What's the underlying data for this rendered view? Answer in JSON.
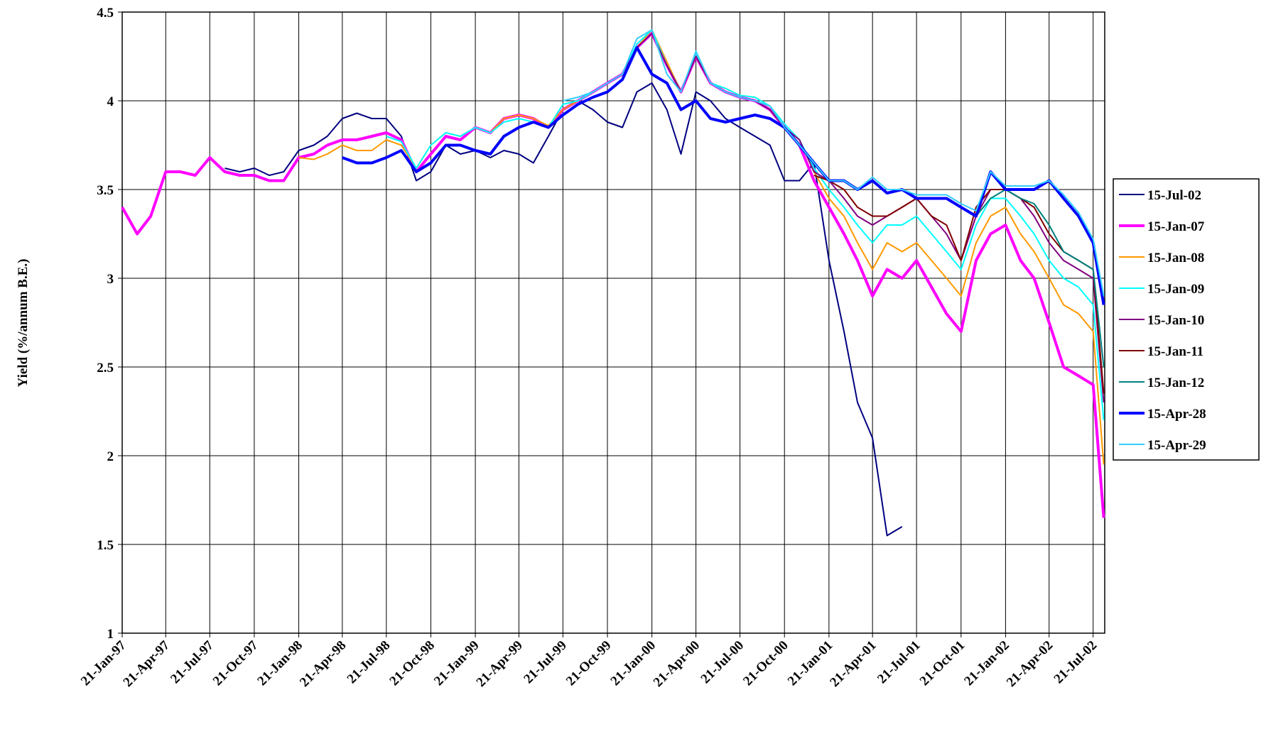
{
  "chart_data": {
    "type": "line",
    "y_label": "Yield (%/annum B.E.)",
    "x": [
      "1997-01-21",
      "1997-02-21",
      "1997-03-21",
      "1997-04-21",
      "1997-05-21",
      "1997-06-21",
      "1997-07-21",
      "1997-08-21",
      "1997-09-21",
      "1997-10-21",
      "1997-11-21",
      "1997-12-21",
      "1998-01-21",
      "1998-02-21",
      "1998-03-21",
      "1998-04-21",
      "1998-05-21",
      "1998-06-21",
      "1998-07-21",
      "1998-08-21",
      "1998-09-21",
      "1998-10-21",
      "1998-11-21",
      "1998-12-21",
      "1999-01-21",
      "1999-02-21",
      "1999-03-21",
      "1999-04-21",
      "1999-05-21",
      "1999-06-21",
      "1999-07-21",
      "1999-08-21",
      "1999-09-21",
      "1999-10-21",
      "1999-11-21",
      "1999-12-21",
      "2000-01-21",
      "2000-02-21",
      "2000-03-21",
      "2000-04-21",
      "2000-05-21",
      "2000-06-21",
      "2000-07-21",
      "2000-08-21",
      "2000-09-21",
      "2000-10-21",
      "2000-11-21",
      "2000-12-21",
      "2001-01-21",
      "2001-02-21",
      "2001-03-21",
      "2001-04-21",
      "2001-05-21",
      "2001-06-21",
      "2001-07-21",
      "2001-08-21",
      "2001-09-21",
      "2001-10-21",
      "2001-11-21",
      "2001-12-21",
      "2002-01-21",
      "2002-02-21",
      "2002-03-21",
      "2002-04-21",
      "2002-05-21",
      "2002-06-21",
      "2002-07-21",
      "2002-08-12"
    ],
    "series": [
      {
        "name": "15-Jul-02",
        "color": "#000080",
        "width": 2,
        "values": [
          null,
          null,
          null,
          null,
          null,
          null,
          null,
          3.62,
          3.6,
          3.62,
          3.58,
          3.6,
          3.72,
          3.75,
          3.8,
          3.9,
          3.93,
          3.9,
          3.9,
          3.8,
          3.55,
          3.6,
          3.75,
          3.7,
          3.72,
          3.68,
          3.72,
          3.7,
          3.65,
          3.8,
          3.95,
          4.0,
          3.95,
          3.88,
          3.85,
          4.05,
          4.1,
          3.95,
          3.7,
          4.05,
          4.0,
          3.9,
          3.85,
          3.8,
          3.75,
          3.55,
          3.55,
          3.65,
          3.1,
          2.7,
          2.3,
          2.1,
          1.55,
          1.6,
          null,
          null,
          null,
          null,
          null,
          null,
          null,
          null,
          null,
          null,
          null,
          null,
          null,
          null
        ]
      },
      {
        "name": "15-Jan-07",
        "color": "#ff00ff",
        "width": 4,
        "values": [
          3.4,
          3.25,
          3.35,
          3.6,
          3.6,
          3.58,
          3.68,
          3.6,
          3.58,
          3.58,
          3.55,
          3.55,
          3.68,
          3.7,
          3.75,
          3.78,
          3.78,
          3.8,
          3.82,
          3.78,
          3.6,
          3.7,
          3.8,
          3.78,
          3.85,
          3.82,
          3.9,
          3.92,
          3.9,
          3.85,
          3.95,
          4.0,
          4.05,
          4.1,
          4.15,
          4.3,
          4.38,
          4.2,
          4.05,
          4.25,
          4.1,
          4.05,
          4.02,
          4.0,
          3.95,
          3.85,
          3.75,
          3.55,
          3.4,
          3.25,
          3.1,
          2.9,
          3.05,
          3.0,
          3.1,
          2.95,
          2.8,
          2.7,
          3.1,
          3.25,
          3.3,
          3.1,
          3.0,
          2.75,
          2.5,
          2.45,
          2.4,
          1.65
        ]
      },
      {
        "name": "15-Jan-08",
        "color": "#ff9900",
        "width": 2,
        "values": [
          null,
          null,
          null,
          null,
          null,
          null,
          null,
          null,
          null,
          null,
          null,
          null,
          3.68,
          3.67,
          3.7,
          3.75,
          3.72,
          3.72,
          3.78,
          3.75,
          3.62,
          3.75,
          3.82,
          3.8,
          3.85,
          3.82,
          3.9,
          3.92,
          3.9,
          3.86,
          3.95,
          4.0,
          4.05,
          4.1,
          4.15,
          4.3,
          4.4,
          4.22,
          4.05,
          4.27,
          4.1,
          4.07,
          4.03,
          4.02,
          3.97,
          3.87,
          3.78,
          3.6,
          3.45,
          3.35,
          3.2,
          3.05,
          3.2,
          3.15,
          3.2,
          3.1,
          3.0,
          2.9,
          3.2,
          3.35,
          3.4,
          3.25,
          3.15,
          3.0,
          2.85,
          2.8,
          2.7,
          1.95
        ]
      },
      {
        "name": "15-Jan-09",
        "color": "#00ffff",
        "width": 2,
        "values": [
          null,
          null,
          null,
          null,
          null,
          null,
          null,
          null,
          null,
          null,
          null,
          null,
          null,
          null,
          null,
          null,
          null,
          null,
          3.8,
          3.77,
          3.62,
          3.75,
          3.82,
          3.8,
          3.85,
          3.82,
          3.88,
          3.9,
          3.88,
          3.85,
          3.98,
          4.0,
          4.05,
          4.1,
          4.15,
          4.32,
          4.4,
          4.2,
          4.05,
          4.27,
          4.1,
          4.07,
          4.03,
          4.02,
          3.97,
          3.87,
          3.78,
          3.62,
          3.5,
          3.4,
          3.3,
          3.2,
          3.3,
          3.3,
          3.35,
          3.25,
          3.15,
          3.05,
          3.3,
          3.45,
          3.45,
          3.35,
          3.25,
          3.1,
          3.0,
          2.95,
          2.85,
          2.2
        ]
      },
      {
        "name": "15-Jan-10",
        "color": "#800080",
        "width": 2,
        "values": [
          null,
          null,
          null,
          null,
          null,
          null,
          null,
          null,
          null,
          null,
          null,
          null,
          null,
          null,
          null,
          null,
          null,
          null,
          null,
          null,
          null,
          null,
          null,
          null,
          null,
          null,
          null,
          null,
          null,
          null,
          null,
          null,
          null,
          4.1,
          4.15,
          4.3,
          4.38,
          4.2,
          4.05,
          4.25,
          4.1,
          4.05,
          4.02,
          4.0,
          3.95,
          3.85,
          3.78,
          3.6,
          3.55,
          3.45,
          3.35,
          3.3,
          3.35,
          3.4,
          3.45,
          3.35,
          3.25,
          3.1,
          3.35,
          3.5,
          3.5,
          3.45,
          3.35,
          3.2,
          3.1,
          3.05,
          3.0,
          2.3
        ]
      },
      {
        "name": "15-Jan-11",
        "color": "#800000",
        "width": 2,
        "values": [
          null,
          null,
          null,
          null,
          null,
          null,
          null,
          null,
          null,
          null,
          null,
          null,
          null,
          null,
          null,
          null,
          null,
          null,
          null,
          null,
          null,
          null,
          null,
          null,
          null,
          null,
          null,
          null,
          null,
          null,
          null,
          null,
          null,
          null,
          null,
          null,
          null,
          null,
          null,
          null,
          null,
          null,
          null,
          null,
          null,
          null,
          null,
          3.58,
          3.55,
          3.5,
          3.4,
          3.35,
          3.35,
          3.4,
          3.45,
          3.35,
          3.3,
          3.1,
          3.4,
          3.5,
          3.5,
          3.45,
          3.4,
          3.25,
          3.15,
          3.1,
          3.05,
          2.35
        ]
      },
      {
        "name": "15-Jan-12",
        "color": "#008080",
        "width": 2,
        "values": [
          null,
          null,
          null,
          null,
          null,
          null,
          null,
          null,
          null,
          null,
          null,
          null,
          null,
          null,
          null,
          null,
          null,
          null,
          null,
          null,
          null,
          null,
          null,
          null,
          null,
          null,
          null,
          null,
          null,
          null,
          null,
          null,
          null,
          null,
          null,
          null,
          null,
          null,
          null,
          null,
          null,
          null,
          null,
          null,
          null,
          null,
          null,
          null,
          null,
          null,
          null,
          null,
          null,
          null,
          null,
          null,
          null,
          null,
          3.35,
          3.45,
          3.5,
          3.45,
          3.42,
          3.3,
          3.15,
          3.1,
          3.05,
          2.5
        ]
      },
      {
        "name": "15-Apr-28",
        "color": "#0000ff",
        "width": 4,
        "values": [
          null,
          null,
          null,
          null,
          null,
          null,
          null,
          null,
          null,
          null,
          null,
          null,
          null,
          null,
          null,
          3.68,
          3.65,
          3.65,
          3.68,
          3.72,
          3.6,
          3.65,
          3.75,
          3.75,
          3.72,
          3.7,
          3.8,
          3.85,
          3.88,
          3.85,
          3.92,
          3.98,
          4.02,
          4.05,
          4.12,
          4.3,
          4.15,
          4.1,
          3.95,
          4.0,
          3.9,
          3.88,
          3.9,
          3.92,
          3.9,
          3.85,
          3.75,
          3.65,
          3.55,
          3.55,
          3.5,
          3.55,
          3.48,
          3.5,
          3.45,
          3.45,
          3.45,
          3.4,
          3.35,
          3.6,
          3.5,
          3.5,
          3.5,
          3.55,
          3.45,
          3.35,
          3.2,
          2.85
        ]
      },
      {
        "name": "15-Apr-29",
        "color": "#33ccff",
        "width": 2,
        "values": [
          null,
          null,
          null,
          null,
          null,
          null,
          null,
          null,
          null,
          null,
          null,
          null,
          null,
          null,
          null,
          null,
          null,
          null,
          null,
          null,
          null,
          null,
          null,
          null,
          null,
          null,
          null,
          null,
          null,
          null,
          4.0,
          4.02,
          4.05,
          4.1,
          4.15,
          4.35,
          4.4,
          4.15,
          4.05,
          4.28,
          4.1,
          4.05,
          4.02,
          4.0,
          3.97,
          3.85,
          3.75,
          3.65,
          3.55,
          3.55,
          3.5,
          3.57,
          3.5,
          3.5,
          3.47,
          3.47,
          3.47,
          3.42,
          3.38,
          3.6,
          3.52,
          3.52,
          3.52,
          3.55,
          3.47,
          3.37,
          3.22,
          2.9
        ]
      }
    ],
    "xlim": [
      "1997-01-21",
      "2002-08-14"
    ],
    "xticks": [
      {
        "value": "1997-01-21",
        "label": "21-Jan-97"
      },
      {
        "value": "1997-04-21",
        "label": "21-Apr-97"
      },
      {
        "value": "1997-07-21",
        "label": "21-Jul-97"
      },
      {
        "value": "1997-10-21",
        "label": "21-Oct-97"
      },
      {
        "value": "1998-01-21",
        "label": "21-Jan-98"
      },
      {
        "value": "1998-04-21",
        "label": "21-Apr-98"
      },
      {
        "value": "1998-07-21",
        "label": "21-Jul-98"
      },
      {
        "value": "1998-10-21",
        "label": "21-Oct-98"
      },
      {
        "value": "1999-01-21",
        "label": "21-Jan-99"
      },
      {
        "value": "1999-04-21",
        "label": "21-Apr-99"
      },
      {
        "value": "1999-07-21",
        "label": "21-Jul-99"
      },
      {
        "value": "1999-10-21",
        "label": "21-Oct-99"
      },
      {
        "value": "2000-01-21",
        "label": "21-Jan-00"
      },
      {
        "value": "2000-04-21",
        "label": "21-Apr-00"
      },
      {
        "value": "2000-07-21",
        "label": "21-Jul-00"
      },
      {
        "value": "2000-10-21",
        "label": "21-Oct-00"
      },
      {
        "value": "2001-01-21",
        "label": "21-Jan-01"
      },
      {
        "value": "2001-04-21",
        "label": "21-Apr-01"
      },
      {
        "value": "2001-07-21",
        "label": "21-Jul-01"
      },
      {
        "value": "2001-10-21",
        "label": "21-Oct-01"
      },
      {
        "value": "2002-01-21",
        "label": "21-Jan-02"
      },
      {
        "value": "2002-04-21",
        "label": "21-Apr-02"
      },
      {
        "value": "2002-07-21",
        "label": "21-Jul-02"
      }
    ],
    "ylim": [
      1,
      4.5
    ],
    "yticks": [
      1,
      1.5,
      2,
      2.5,
      3,
      3.5,
      4,
      4.5
    ],
    "grid": true,
    "legend": "right"
  }
}
